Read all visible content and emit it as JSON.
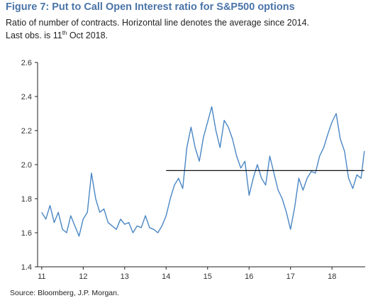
{
  "figure": {
    "title": "Figure 7: Put to Call Open Interest ratio for S&P500 options",
    "subtitle_line1": "Ratio of number of contracts. Horizontal line denotes the average since 2014.",
    "subtitle_line2_prefix": "Last obs. is 11",
    "subtitle_line2_sup": "th",
    "subtitle_line2_suffix": " Oct 2018.",
    "source": "Source:  Bloomberg, J.P. Morgan."
  },
  "colors": {
    "series": "#4a86c4",
    "average_line": "#111111",
    "axis": "#222222"
  },
  "chart_data": {
    "type": "line",
    "title": "Figure 7: Put to Call Open Interest ratio for S&P500 options",
    "xlabel": "",
    "ylabel": "",
    "xlim": [
      2010.9,
      2018.8
    ],
    "ylim": [
      1.4,
      2.6
    ],
    "y_ticks": [
      "1.4",
      "1.6",
      "1.8",
      "2.0",
      "2.2",
      "2.4",
      "2.6"
    ],
    "y_tick_values": [
      1.4,
      1.6,
      1.8,
      2.0,
      2.2,
      2.4,
      2.6
    ],
    "x_ticks": [
      "11",
      "12",
      "13",
      "14",
      "15",
      "16",
      "17",
      "18"
    ],
    "x_tick_values": [
      2011,
      2012,
      2013,
      2014,
      2015,
      2016,
      2017,
      2018
    ],
    "grid": false,
    "legend": "none",
    "series": [
      {
        "x": [
          2011.0,
          2011.1,
          2011.2,
          2011.3,
          2011.4,
          2011.5,
          2011.6,
          2011.7,
          2011.8,
          2011.9,
          2012.0,
          2012.1,
          2012.2,
          2012.3,
          2012.4,
          2012.5,
          2012.6,
          2012.7,
          2012.8,
          2012.9,
          2013.0,
          2013.1,
          2013.2,
          2013.3,
          2013.4,
          2013.5,
          2013.6,
          2013.7,
          2013.8,
          2013.9,
          2014.0,
          2014.1,
          2014.2,
          2014.3,
          2014.4,
          2014.5,
          2014.6,
          2014.7,
          2014.8,
          2014.9,
          2015.0,
          2015.1,
          2015.2,
          2015.3,
          2015.4,
          2015.5,
          2015.6,
          2015.7,
          2015.8,
          2015.9,
          2016.0,
          2016.1,
          2016.2,
          2016.3,
          2016.4,
          2016.5,
          2016.6,
          2016.7,
          2016.8,
          2016.9,
          2017.0,
          2017.1,
          2017.2,
          2017.3,
          2017.4,
          2017.5,
          2017.6,
          2017.7,
          2017.8,
          2017.9,
          2018.0,
          2018.1,
          2018.2,
          2018.3,
          2018.4,
          2018.5,
          2018.6,
          2018.7,
          2018.78
        ],
        "values": [
          1.72,
          1.68,
          1.76,
          1.66,
          1.72,
          1.62,
          1.6,
          1.7,
          1.64,
          1.58,
          1.68,
          1.72,
          1.95,
          1.8,
          1.72,
          1.74,
          1.66,
          1.64,
          1.62,
          1.68,
          1.65,
          1.66,
          1.6,
          1.64,
          1.63,
          1.7,
          1.63,
          1.62,
          1.6,
          1.64,
          1.7,
          1.8,
          1.88,
          1.92,
          1.86,
          2.1,
          2.22,
          2.1,
          2.02,
          2.16,
          2.25,
          2.34,
          2.2,
          2.1,
          2.26,
          2.22,
          2.15,
          2.05,
          1.98,
          2.02,
          1.82,
          1.92,
          2.0,
          1.92,
          1.88,
          2.05,
          1.95,
          1.85,
          1.8,
          1.72,
          1.62,
          1.75,
          1.92,
          1.85,
          1.92,
          1.96,
          1.95,
          2.05,
          2.1,
          2.18,
          2.25,
          2.3,
          2.15,
          2.08,
          1.92,
          1.86,
          1.94,
          1.92,
          2.08
        ]
      },
      {
        "x": [
          2014.0,
          2018.78
        ],
        "values": [
          1.965,
          1.965
        ]
      }
    ],
    "annotations": []
  }
}
